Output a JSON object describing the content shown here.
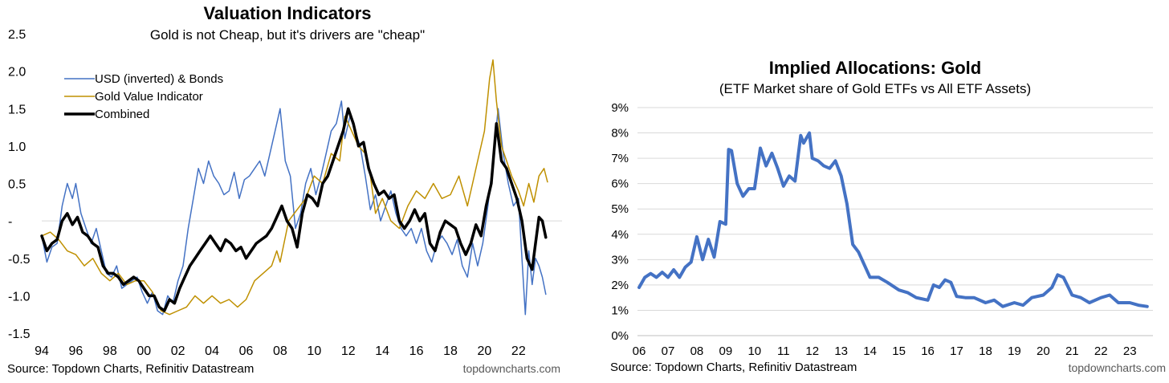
{
  "chart_data": [
    {
      "type": "line",
      "title": "Valuation Indicators",
      "subtitle": "Gold is not Cheap, but it's drivers are \"cheap\"",
      "xlabel": "",
      "ylabel": "",
      "xlim": [
        1994,
        2023.8
      ],
      "ylim": [
        -1.5,
        2.5
      ],
      "y_ticks": [
        {
          "value": 2.5,
          "label": "2.5"
        },
        {
          "value": 2.0,
          "label": "2.0"
        },
        {
          "value": 1.5,
          "label": "1.5"
        },
        {
          "value": 1.0,
          "label": "1.0"
        },
        {
          "value": 0.5,
          "label": "0.5"
        },
        {
          "value": 0,
          "label": "-"
        },
        {
          "value": -0.5,
          "label": "-0.5"
        },
        {
          "value": -1.0,
          "label": "-1.0"
        },
        {
          "value": -1.5,
          "label": "-1.5"
        }
      ],
      "x_ticks": [
        {
          "value": 1994,
          "label": "94"
        },
        {
          "value": 1996,
          "label": "96"
        },
        {
          "value": 1998,
          "label": "98"
        },
        {
          "value": 2000,
          "label": "00"
        },
        {
          "value": 2002,
          "label": "02"
        },
        {
          "value": 2004,
          "label": "04"
        },
        {
          "value": 2006,
          "label": "06"
        },
        {
          "value": 2008,
          "label": "08"
        },
        {
          "value": 2010,
          "label": "10"
        },
        {
          "value": 2012,
          "label": "12"
        },
        {
          "value": 2014,
          "label": "14"
        },
        {
          "value": 2016,
          "label": "16"
        },
        {
          "value": 2018,
          "label": "18"
        },
        {
          "value": 2020,
          "label": "20"
        },
        {
          "value": 2022,
          "label": "22"
        }
      ],
      "zero_line": true,
      "grid": false,
      "legend_position": "top-left",
      "source": "Source: Topdown Charts, Refinitiv Datastream",
      "watermark": "topdowncharts.com",
      "series": [
        {
          "name": "USD (inverted) & Bonds",
          "color": "#4472C4",
          "width": 1.5,
          "x": [
            1994.0,
            1994.3,
            1994.6,
            1994.9,
            1995.2,
            1995.5,
            1995.8,
            1996.0,
            1996.3,
            1996.6,
            1996.9,
            1997.2,
            1997.5,
            1997.8,
            1998.1,
            1998.4,
            1998.7,
            1999.0,
            1999.3,
            1999.6,
            1999.9,
            2000.2,
            2000.5,
            2000.8,
            2001.1,
            2001.4,
            2001.7,
            2002.0,
            2002.3,
            2002.6,
            2002.9,
            2003.2,
            2003.5,
            2003.8,
            2004.1,
            2004.4,
            2004.7,
            2005.0,
            2005.3,
            2005.6,
            2005.9,
            2006.2,
            2006.5,
            2006.8,
            2007.1,
            2007.4,
            2007.7,
            2008.0,
            2008.3,
            2008.6,
            2008.9,
            2009.2,
            2009.5,
            2009.8,
            2010.1,
            2010.4,
            2010.7,
            2011.0,
            2011.3,
            2011.6,
            2011.8,
            2012.1,
            2012.4,
            2012.7,
            2013.0,
            2013.3,
            2013.6,
            2013.9,
            2014.2,
            2014.5,
            2014.8,
            2015.1,
            2015.4,
            2015.7,
            2016.0,
            2016.3,
            2016.6,
            2016.9,
            2017.2,
            2017.5,
            2017.8,
            2018.1,
            2018.4,
            2018.7,
            2019.0,
            2019.3,
            2019.6,
            2019.9,
            2020.2,
            2020.5,
            2020.8,
            2021.1,
            2021.4,
            2021.7,
            2022.0,
            2022.2,
            2022.4,
            2022.6,
            2022.8,
            2023.0,
            2023.2,
            2023.4,
            2023.6
          ],
          "y": [
            -0.2,
            -0.55,
            -0.35,
            -0.3,
            0.2,
            0.5,
            0.3,
            0.5,
            0.1,
            -0.1,
            -0.3,
            -0.1,
            -0.4,
            -0.7,
            -0.75,
            -0.6,
            -0.9,
            -0.85,
            -0.8,
            -0.75,
            -0.95,
            -1.1,
            -0.95,
            -1.2,
            -1.25,
            -1.0,
            -1.1,
            -0.8,
            -0.6,
            -0.1,
            0.3,
            0.7,
            0.5,
            0.8,
            0.6,
            0.5,
            0.35,
            0.4,
            0.65,
            0.3,
            0.55,
            0.6,
            0.7,
            0.8,
            0.6,
            0.9,
            1.2,
            1.5,
            0.8,
            0.6,
            -0.1,
            0.1,
            0.5,
            0.7,
            0.35,
            0.6,
            0.9,
            1.2,
            1.3,
            1.6,
            1.1,
            1.4,
            1.2,
            1.0,
            0.6,
            0.15,
            0.35,
            0.0,
            0.2,
            0.4,
            0.1,
            -0.1,
            -0.2,
            -0.1,
            -0.3,
            -0.1,
            -0.4,
            -0.55,
            -0.3,
            -0.2,
            -0.3,
            -0.45,
            -0.25,
            -0.6,
            -0.75,
            -0.3,
            -0.6,
            -0.3,
            0.2,
            0.8,
            1.5,
            0.9,
            0.5,
            0.2,
            0.3,
            -0.5,
            -1.25,
            -0.4,
            -0.85,
            -0.5,
            -0.6,
            -0.75,
            -0.98
          ]
        },
        {
          "name": "Gold Value Indicator",
          "color": "#BF9000",
          "width": 1.5,
          "x": [
            1994.0,
            1994.5,
            1995.0,
            1995.5,
            1996.0,
            1996.5,
            1997.0,
            1997.5,
            1998.0,
            1998.5,
            1999.0,
            1999.5,
            2000.0,
            2000.5,
            2001.0,
            2001.5,
            2002.0,
            2002.5,
            2003.0,
            2003.5,
            2004.0,
            2004.5,
            2005.0,
            2005.5,
            2006.0,
            2006.5,
            2007.0,
            2007.5,
            2007.8,
            2008.0,
            2008.5,
            2009.0,
            2009.5,
            2010.0,
            2010.5,
            2011.0,
            2011.5,
            2011.8,
            2012.2,
            2012.6,
            2013.0,
            2013.3,
            2013.6,
            2014.0,
            2014.5,
            2015.0,
            2015.5,
            2016.0,
            2016.5,
            2017.0,
            2017.5,
            2018.0,
            2018.5,
            2019.0,
            2019.3,
            2019.6,
            2020.0,
            2020.3,
            2020.5,
            2020.7,
            2021.0,
            2021.3,
            2021.6,
            2022.0,
            2022.3,
            2022.6,
            2022.9,
            2023.2,
            2023.5,
            2023.7
          ],
          "y": [
            -0.2,
            -0.15,
            -0.25,
            -0.4,
            -0.45,
            -0.6,
            -0.5,
            -0.7,
            -0.8,
            -0.7,
            -0.85,
            -0.8,
            -0.8,
            -0.95,
            -1.2,
            -1.25,
            -1.2,
            -1.15,
            -1.0,
            -1.1,
            -1.0,
            -1.1,
            -1.05,
            -1.15,
            -1.05,
            -0.8,
            -0.7,
            -0.6,
            -0.4,
            -0.55,
            0.0,
            0.15,
            0.3,
            0.6,
            0.5,
            0.9,
            0.8,
            1.4,
            1.2,
            1.0,
            0.9,
            0.6,
            0.1,
            0.3,
            0.0,
            -0.1,
            0.2,
            0.4,
            0.3,
            0.5,
            0.3,
            0.35,
            0.6,
            0.2,
            0.5,
            0.8,
            1.2,
            1.9,
            2.15,
            1.6,
            1.0,
            0.8,
            0.6,
            0.4,
            0.2,
            0.5,
            0.25,
            0.6,
            0.7,
            0.52
          ]
        },
        {
          "name": "Combined",
          "color": "#000000",
          "width": 3.5,
          "x": [
            1994.0,
            1994.3,
            1994.6,
            1994.9,
            1995.2,
            1995.5,
            1995.8,
            1996.1,
            1996.4,
            1996.7,
            1997.0,
            1997.3,
            1997.6,
            1997.9,
            1998.2,
            1998.5,
            1998.8,
            1999.1,
            1999.4,
            1999.7,
            2000.0,
            2000.3,
            2000.6,
            2000.9,
            2001.2,
            2001.5,
            2001.8,
            2002.1,
            2002.4,
            2002.7,
            2003.0,
            2003.3,
            2003.6,
            2003.9,
            2004.2,
            2004.5,
            2004.8,
            2005.1,
            2005.4,
            2005.7,
            2006.0,
            2006.3,
            2006.6,
            2006.9,
            2007.2,
            2007.5,
            2007.8,
            2008.1,
            2008.4,
            2008.7,
            2009.0,
            2009.3,
            2009.6,
            2009.9,
            2010.2,
            2010.5,
            2010.8,
            2011.1,
            2011.4,
            2011.7,
            2012.0,
            2012.3,
            2012.6,
            2012.9,
            2013.2,
            2013.5,
            2013.8,
            2014.1,
            2014.4,
            2014.7,
            2015.0,
            2015.3,
            2015.6,
            2015.9,
            2016.2,
            2016.5,
            2016.8,
            2017.1,
            2017.4,
            2017.7,
            2018.0,
            2018.3,
            2018.6,
            2018.9,
            2019.2,
            2019.5,
            2019.8,
            2020.1,
            2020.4,
            2020.7,
            2021.0,
            2021.3,
            2021.6,
            2021.9,
            2022.2,
            2022.5,
            2022.8,
            2023.0,
            2023.2,
            2023.4,
            2023.6
          ],
          "y": [
            -0.2,
            -0.4,
            -0.3,
            -0.25,
            0.0,
            0.1,
            -0.05,
            0.05,
            -0.15,
            -0.2,
            -0.3,
            -0.35,
            -0.6,
            -0.7,
            -0.7,
            -0.75,
            -0.85,
            -0.8,
            -0.75,
            -0.8,
            -0.9,
            -1.0,
            -1.0,
            -1.15,
            -1.2,
            -1.05,
            -1.1,
            -0.9,
            -0.75,
            -0.6,
            -0.5,
            -0.4,
            -0.3,
            -0.2,
            -0.3,
            -0.4,
            -0.25,
            -0.3,
            -0.4,
            -0.35,
            -0.5,
            -0.4,
            -0.3,
            -0.25,
            -0.2,
            -0.1,
            0.05,
            0.2,
            0.0,
            -0.1,
            -0.35,
            0.1,
            0.35,
            0.3,
            0.2,
            0.5,
            0.6,
            0.8,
            1.0,
            1.2,
            1.5,
            1.3,
            1.0,
            1.05,
            0.7,
            0.5,
            0.35,
            0.4,
            0.3,
            0.35,
            0.0,
            -0.1,
            0.0,
            0.15,
            0.0,
            0.1,
            -0.3,
            -0.4,
            -0.15,
            0.0,
            -0.05,
            -0.1,
            -0.3,
            -0.45,
            -0.3,
            -0.05,
            -0.2,
            0.2,
            0.5,
            1.3,
            0.8,
            0.7,
            0.5,
            0.3,
            0.0,
            -0.5,
            -0.65,
            -0.3,
            0.05,
            0.0,
            -0.22
          ]
        }
      ]
    },
    {
      "type": "line",
      "title": "Implied Allocations: Gold",
      "subtitle": "(ETF Market share of Gold ETFs vs All ETF Assets)",
      "xlabel": "",
      "ylabel": "",
      "xlim": [
        2006,
        2023.8
      ],
      "ylim": [
        0,
        9
      ],
      "y_ticks": [
        {
          "value": 9,
          "label": "9%"
        },
        {
          "value": 8,
          "label": "8%"
        },
        {
          "value": 7,
          "label": "7%"
        },
        {
          "value": 6,
          "label": "6%"
        },
        {
          "value": 5,
          "label": "5%"
        },
        {
          "value": 4,
          "label": "4%"
        },
        {
          "value": 3,
          "label": "3%"
        },
        {
          "value": 2,
          "label": "2%"
        },
        {
          "value": 1,
          "label": "1%"
        },
        {
          "value": 0,
          "label": "0%"
        }
      ],
      "x_ticks": [
        {
          "value": 2006,
          "label": "06"
        },
        {
          "value": 2007,
          "label": "07"
        },
        {
          "value": 2008,
          "label": "08"
        },
        {
          "value": 2009,
          "label": "09"
        },
        {
          "value": 2010,
          "label": "10"
        },
        {
          "value": 2011,
          "label": "11"
        },
        {
          "value": 2012,
          "label": "12"
        },
        {
          "value": 2013,
          "label": "13"
        },
        {
          "value": 2014,
          "label": "14"
        },
        {
          "value": 2015,
          "label": "15"
        },
        {
          "value": 2016,
          "label": "16"
        },
        {
          "value": 2017,
          "label": "17"
        },
        {
          "value": 2018,
          "label": "18"
        },
        {
          "value": 2019,
          "label": "19"
        },
        {
          "value": 2020,
          "label": "20"
        },
        {
          "value": 2021,
          "label": "21"
        },
        {
          "value": 2022,
          "label": "22"
        },
        {
          "value": 2023,
          "label": "23"
        }
      ],
      "grid": true,
      "source": "Source: Topdown Charts, Refinitiv Datastream",
      "watermark": "topdowncharts.com",
      "series": [
        {
          "color": "#4472C4",
          "width": 4,
          "x": [
            2006.0,
            2006.2,
            2006.4,
            2006.6,
            2006.8,
            2007.0,
            2007.2,
            2007.4,
            2007.6,
            2007.8,
            2008.0,
            2008.2,
            2008.4,
            2008.6,
            2008.8,
            2009.0,
            2009.1,
            2009.2,
            2009.4,
            2009.6,
            2009.8,
            2010.0,
            2010.2,
            2010.4,
            2010.6,
            2010.8,
            2011.0,
            2011.2,
            2011.4,
            2011.6,
            2011.7,
            2011.9,
            2012.0,
            2012.2,
            2012.4,
            2012.6,
            2012.8,
            2013.0,
            2013.2,
            2013.4,
            2013.6,
            2013.8,
            2014.0,
            2014.3,
            2014.6,
            2015.0,
            2015.3,
            2015.6,
            2016.0,
            2016.2,
            2016.4,
            2016.6,
            2016.8,
            2017.0,
            2017.3,
            2017.6,
            2018.0,
            2018.3,
            2018.6,
            2019.0,
            2019.3,
            2019.6,
            2020.0,
            2020.3,
            2020.5,
            2020.7,
            2021.0,
            2021.3,
            2021.6,
            2022.0,
            2022.3,
            2022.6,
            2023.0,
            2023.3,
            2023.6
          ],
          "y": [
            1.9,
            2.3,
            2.45,
            2.3,
            2.5,
            2.3,
            2.6,
            2.3,
            2.7,
            2.9,
            3.9,
            3.0,
            3.8,
            3.1,
            4.5,
            4.4,
            7.35,
            7.3,
            6.0,
            5.5,
            5.8,
            5.8,
            7.4,
            6.7,
            7.2,
            6.6,
            5.9,
            6.3,
            6.1,
            7.9,
            7.6,
            8.0,
            7.0,
            6.9,
            6.7,
            6.6,
            6.9,
            6.3,
            5.2,
            3.6,
            3.3,
            2.8,
            2.3,
            2.3,
            2.1,
            1.8,
            1.7,
            1.5,
            1.4,
            2.0,
            1.9,
            2.2,
            2.1,
            1.55,
            1.5,
            1.5,
            1.3,
            1.4,
            1.15,
            1.3,
            1.2,
            1.5,
            1.6,
            1.9,
            2.4,
            2.3,
            1.6,
            1.5,
            1.3,
            1.5,
            1.6,
            1.3,
            1.3,
            1.2,
            1.15
          ]
        }
      ]
    }
  ]
}
